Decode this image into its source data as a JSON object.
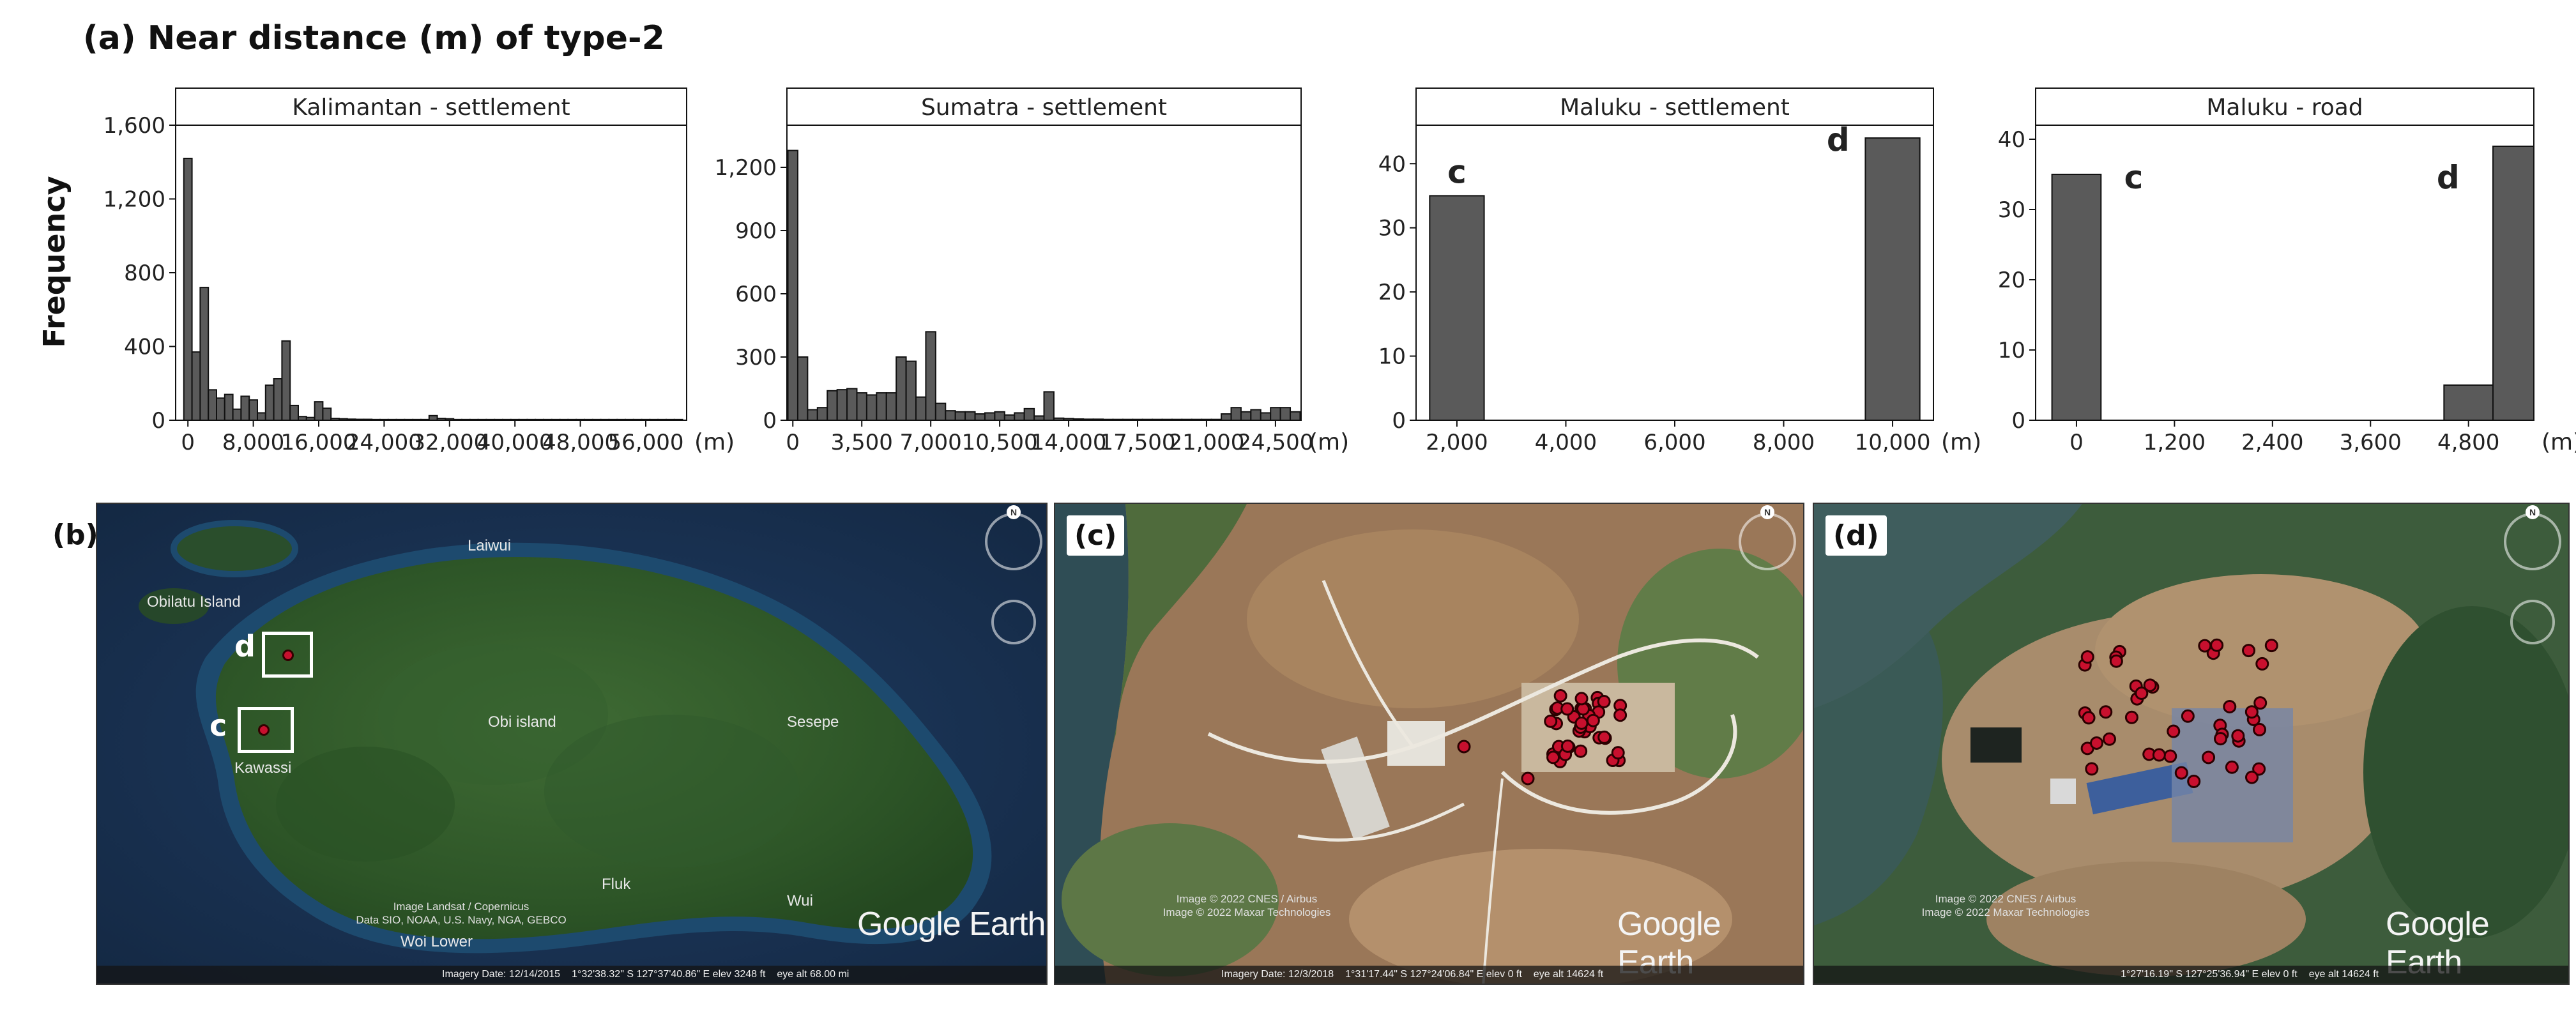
{
  "panel_a_title": "(a)  Near distance (m) of type-2",
  "ylabel": "Frequency",
  "chart_data": [
    {
      "type": "bar",
      "strip": "Kalimantan - settlement",
      "unit": "(m)",
      "ylim": [
        0,
        1600
      ],
      "yticks": [
        0,
        400,
        800,
        1200,
        1600
      ],
      "ytick_labels": [
        "0",
        "400",
        "800",
        "1,200",
        "1,600"
      ],
      "xlim": [
        -1500,
        61000
      ],
      "xticks": [
        0,
        8000,
        16000,
        24000,
        32000,
        40000,
        48000,
        56000
      ],
      "xtick_labels": [
        "0",
        "8,000",
        "16,000",
        "24,000",
        "32,000",
        "40,000",
        "48,000",
        "56,000"
      ],
      "bin_width": 1000,
      "bin_starts": [
        -500,
        500,
        1500,
        2500,
        3500,
        4500,
        5500,
        6500,
        7500,
        8500,
        9500,
        10500,
        11500,
        12500,
        13500,
        14500,
        15500,
        16500,
        17500,
        18500,
        19500,
        20500,
        21500,
        22500,
        23500,
        24500,
        25500,
        26500,
        27500,
        28500,
        29500,
        30500,
        31500,
        32500,
        33500,
        34500,
        35500,
        36500,
        37500,
        38500,
        39500,
        40500,
        41500,
        42500,
        43500,
        44500,
        45500,
        46500,
        47500,
        48500,
        49500,
        50500,
        51500,
        52500,
        53500,
        54500,
        55500,
        56500,
        57500,
        58500,
        59500
      ],
      "values": [
        1420,
        370,
        720,
        165,
        120,
        140,
        60,
        130,
        110,
        40,
        190,
        225,
        430,
        80,
        20,
        15,
        100,
        65,
        10,
        8,
        6,
        5,
        5,
        4,
        4,
        4,
        4,
        4,
        4,
        4,
        25,
        10,
        8,
        4,
        4,
        4,
        4,
        4,
        4,
        4,
        4,
        4,
        4,
        4,
        4,
        4,
        4,
        4,
        4,
        4,
        4,
        4,
        4,
        4,
        4,
        4,
        4,
        4,
        4,
        4,
        4
      ]
    },
    {
      "type": "bar",
      "strip": "Sumatra - settlement",
      "unit": "(m)",
      "ylim": [
        0,
        1400
      ],
      "yticks": [
        0,
        300,
        600,
        900,
        1200
      ],
      "ytick_labels": [
        "0",
        "300",
        "600",
        "900",
        "1,200"
      ],
      "xlim": [
        -300,
        25800
      ],
      "xticks": [
        0,
        3500,
        7000,
        10500,
        14000,
        17500,
        21000,
        24500
      ],
      "xtick_labels": [
        "0",
        "3,500",
        "7,000",
        "10,500",
        "14,000",
        "17,500",
        "21,000",
        "24,500"
      ],
      "bin_width": 500,
      "bin_starts": [
        -250,
        250,
        750,
        1250,
        1750,
        2250,
        2750,
        3250,
        3750,
        4250,
        4750,
        5250,
        5750,
        6250,
        6750,
        7250,
        7750,
        8250,
        8750,
        9250,
        9750,
        10250,
        10750,
        11250,
        11750,
        12250,
        12750,
        13250,
        13750,
        14250,
        14750,
        15250,
        15750,
        16250,
        16750,
        17250,
        17750,
        18250,
        18750,
        19250,
        19750,
        20250,
        20750,
        21250,
        21750,
        22250,
        22750,
        23250,
        23750,
        24250,
        24750,
        25250
      ],
      "values": [
        1280,
        300,
        50,
        60,
        140,
        145,
        150,
        130,
        120,
        130,
        130,
        300,
        280,
        110,
        420,
        80,
        45,
        40,
        40,
        30,
        35,
        40,
        25,
        35,
        55,
        20,
        135,
        10,
        8,
        6,
        5,
        5,
        4,
        4,
        4,
        4,
        4,
        4,
        4,
        4,
        4,
        4,
        4,
        4,
        30,
        60,
        40,
        50,
        35,
        60,
        60,
        40
      ]
    },
    {
      "type": "bar",
      "strip": "Maluku - settlement",
      "unit": "(m)",
      "ylim": [
        0,
        46
      ],
      "yticks": [
        0,
        10,
        20,
        30,
        40
      ],
      "ytick_labels": [
        "0",
        "10",
        "20",
        "30",
        "40"
      ],
      "xlim": [
        1250,
        10750
      ],
      "xticks": [
        2000,
        4000,
        6000,
        8000,
        10000
      ],
      "xtick_labels": [
        "2,000",
        "4,000",
        "6,000",
        "8,000",
        "10,000"
      ],
      "bin_width": 1000,
      "bin_starts": [
        1500,
        9500
      ],
      "values": [
        35,
        44
      ],
      "annotations": [
        {
          "text": "c",
          "x": 2000,
          "y": 37
        },
        {
          "text": "d",
          "x": 9000,
          "y": 42
        }
      ]
    },
    {
      "type": "bar",
      "strip": "Maluku - road",
      "unit": "(m)",
      "ylim": [
        0,
        42
      ],
      "yticks": [
        0,
        10,
        20,
        30,
        40
      ],
      "ytick_labels": [
        "0",
        "10",
        "20",
        "30",
        "40"
      ],
      "xlim": [
        -500,
        5600
      ],
      "xticks": [
        0,
        1200,
        2400,
        3600,
        4800
      ],
      "xtick_labels": [
        "0",
        "1,200",
        "2,400",
        "3,600",
        "4,800"
      ],
      "bin_width": 600,
      "bin_starts": [
        -300,
        4500,
        5100
      ],
      "values": [
        35,
        5,
        39
      ],
      "annotations": [
        {
          "text": "c",
          "x": 700,
          "y": 33
        },
        {
          "text": "d",
          "x": 4550,
          "y": 33
        }
      ]
    }
  ],
  "maps": {
    "b": {
      "letter": "(b)",
      "labels": [
        "Laiwui",
        "Obilatu Island",
        "Obi island",
        "Sesepe",
        "Kawassi",
        "Fluk",
        "Wui",
        "Woi Lower"
      ],
      "box_letters": [
        "d",
        "c"
      ],
      "credits": [
        "Image Landsat / Copernicus",
        "Data SIO, NOAA, U.S. Navy, NGA, GEBCO"
      ],
      "logo": "Google Earth",
      "status": [
        "Imagery Date: 12/14/2015",
        "1°32'38.32\" S   127°37'40.86\" E   elev  3248 ft",
        "eye alt  68.00 mi"
      ]
    },
    "c": {
      "letter": "(c)",
      "credits": [
        "Image © 2022 CNES / Airbus",
        "Image © 2022 Maxar Technologies"
      ],
      "logo": "Google Earth",
      "status": [
        "Imagery Date: 12/3/2018",
        "1°31'17.44\" S   127°24'06.84\" E   elev  0 ft",
        "eye alt  14624 ft"
      ]
    },
    "d": {
      "letter": "(d)",
      "credits": [
        "Image © 2022 CNES / Airbus",
        "Image © 2022 Maxar Technologies"
      ],
      "logo": "Google Earth",
      "status": [
        "1°27'16.19\" S   127°25'36.94\" E   elev  0 ft",
        "eye alt  14624 ft"
      ]
    }
  },
  "colors": {
    "bar_fill": "#5a5a5a",
    "bar_stroke": "#111111",
    "strip_fill": "#ffffff",
    "marker": "#c8102e"
  }
}
